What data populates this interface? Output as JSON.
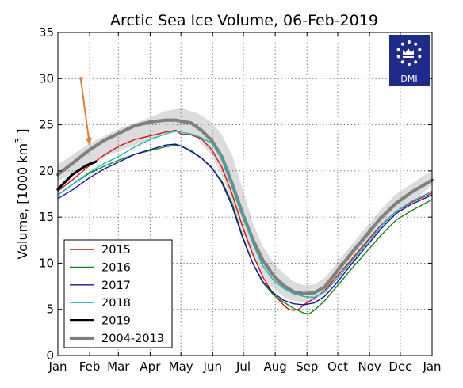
{
  "chart_data": {
    "type": "line",
    "title": "Arctic Sea Ice Volume, 06-Feb-2019",
    "ylabel_main": "Volume, [1000 km",
    "ylabel_sup": "3",
    "ylabel_end": " ]",
    "ylim": [
      0,
      35
    ],
    "yticks": [
      0,
      5,
      10,
      15,
      20,
      25,
      30,
      35
    ],
    "xlim": [
      0,
      365
    ],
    "xticks": [
      {
        "day": 0,
        "label": "Jan"
      },
      {
        "day": 31,
        "label": "Feb"
      },
      {
        "day": 59,
        "label": "Mar"
      },
      {
        "day": 90,
        "label": "Apr"
      },
      {
        "day": 120,
        "label": "May"
      },
      {
        "day": 151,
        "label": "Jun"
      },
      {
        "day": 181,
        "label": "Jul"
      },
      {
        "day": 212,
        "label": "Aug"
      },
      {
        "day": 243,
        "label": "Sep"
      },
      {
        "day": 273,
        "label": "Oct"
      },
      {
        "day": 304,
        "label": "Nov"
      },
      {
        "day": 334,
        "label": "Dec"
      },
      {
        "day": 365,
        "label": "Jan"
      }
    ],
    "grid": true,
    "legend_position": "lower-left",
    "band": {
      "x": [
        0,
        30,
        60,
        90,
        105,
        120,
        135,
        150,
        160,
        170,
        180,
        190,
        200,
        210,
        220,
        230,
        240,
        250,
        260,
        270,
        285,
        300,
        315,
        330,
        345,
        365
      ],
      "lower": [
        18.9,
        20.8,
        22.2,
        23.4,
        24.2,
        24.4,
        23.6,
        21.7,
        19.5,
        16.6,
        13.5,
        10.7,
        8.6,
        7.3,
        6.4,
        5.9,
        5.8,
        6.0,
        6.7,
        7.9,
        9.8,
        11.7,
        13.7,
        15.4,
        16.5,
        18.5
      ],
      "upper": [
        20.7,
        22.9,
        24.6,
        25.8,
        26.5,
        26.8,
        26.3,
        25.3,
        23.9,
        21.7,
        18.1,
        14.4,
        11.8,
        10.1,
        8.9,
        8.0,
        7.6,
        7.7,
        8.4,
        9.7,
        11.8,
        13.8,
        15.8,
        17.5,
        18.6,
        20.1
      ]
    },
    "series": [
      {
        "name": "2015",
        "color": "#dd1111",
        "width": 1.4,
        "x": [
          0,
          15,
          30,
          45,
          60,
          75,
          90,
          105,
          115,
          120,
          130,
          140,
          150,
          160,
          170,
          180,
          190,
          200,
          210,
          220,
          225,
          230,
          235,
          240,
          250,
          260,
          270,
          285,
          300,
          315,
          330,
          345,
          365
        ],
        "y": [
          17.8,
          19.1,
          20.5,
          21.7,
          22.7,
          23.4,
          23.8,
          24.2,
          24.4,
          24.0,
          23.9,
          23.5,
          22.3,
          20.4,
          17.5,
          14.0,
          11.0,
          8.5,
          6.7,
          5.5,
          5.0,
          4.9,
          5.0,
          5.5,
          6.2,
          7.0,
          8.3,
          10.2,
          12.2,
          14.1,
          15.6,
          16.6,
          17.6
        ]
      },
      {
        "name": "2016",
        "color": "#118811",
        "width": 1.4,
        "x": [
          0,
          15,
          30,
          45,
          60,
          75,
          90,
          105,
          115,
          120,
          130,
          140,
          150,
          160,
          170,
          180,
          190,
          200,
          210,
          220,
          230,
          240,
          245,
          250,
          260,
          270,
          285,
          300,
          315,
          330,
          345,
          365
        ],
        "y": [
          17.4,
          18.6,
          19.7,
          20.5,
          21.2,
          21.8,
          22.2,
          22.6,
          22.8,
          22.7,
          22.2,
          21.4,
          20.3,
          18.9,
          16.5,
          13.0,
          10.0,
          7.9,
          6.6,
          5.8,
          5.1,
          4.6,
          4.5,
          4.9,
          5.9,
          7.2,
          9.2,
          11.1,
          13.0,
          14.7,
          15.7,
          16.9
        ]
      },
      {
        "name": "2017",
        "color": "#1111aa",
        "width": 1.4,
        "x": [
          0,
          15,
          30,
          45,
          60,
          75,
          90,
          105,
          115,
          120,
          130,
          140,
          150,
          160,
          170,
          180,
          190,
          200,
          210,
          220,
          230,
          240,
          250,
          260,
          270,
          285,
          300,
          315,
          330,
          345,
          365
        ],
        "y": [
          17.0,
          18.0,
          19.2,
          20.2,
          21.0,
          21.8,
          22.3,
          22.8,
          22.9,
          22.7,
          22.1,
          21.4,
          20.4,
          18.7,
          16.2,
          12.8,
          10.0,
          8.0,
          6.8,
          6.0,
          5.6,
          5.5,
          5.7,
          6.4,
          7.6,
          9.7,
          11.7,
          13.7,
          15.4,
          16.4,
          17.4
        ]
      },
      {
        "name": "2018",
        "color": "#11bbbb",
        "width": 1.4,
        "x": [
          0,
          15,
          30,
          45,
          60,
          75,
          90,
          105,
          115,
          120,
          130,
          140,
          150,
          160,
          170,
          180,
          190,
          200,
          210,
          220,
          230,
          240,
          250,
          260,
          270,
          285,
          300,
          315,
          330,
          345,
          365
        ],
        "y": [
          17.4,
          18.6,
          19.8,
          20.8,
          21.6,
          22.6,
          23.4,
          24.0,
          24.3,
          24.2,
          24.0,
          23.6,
          23.0,
          21.5,
          18.5,
          15.5,
          12.2,
          9.7,
          8.2,
          7.3,
          6.7,
          6.4,
          6.3,
          6.9,
          8.0,
          10.0,
          12.0,
          14.0,
          15.6,
          16.7,
          17.8
        ]
      },
      {
        "name": "2019",
        "color": "#000000",
        "width": 3.2,
        "x": [
          0,
          7,
          14,
          21,
          28,
          37
        ],
        "y": [
          18.0,
          18.8,
          19.6,
          20.1,
          20.6,
          21.0
        ]
      },
      {
        "name": "2004-2013",
        "color": "#808080",
        "width": 4.2,
        "x": [
          0,
          15,
          30,
          45,
          60,
          75,
          90,
          105,
          115,
          120,
          130,
          140,
          150,
          160,
          170,
          180,
          190,
          200,
          210,
          220,
          230,
          240,
          250,
          260,
          270,
          285,
          300,
          315,
          330,
          345,
          365
        ],
        "y": [
          19.6,
          20.9,
          22.2,
          23.3,
          24.1,
          24.9,
          25.3,
          25.5,
          25.5,
          25.4,
          25.2,
          24.4,
          23.3,
          21.5,
          18.6,
          15.4,
          12.6,
          10.3,
          8.7,
          7.6,
          6.9,
          6.7,
          6.8,
          7.4,
          8.8,
          10.9,
          12.9,
          14.9,
          16.5,
          17.7,
          19.0
        ]
      }
    ],
    "annotation_arrow": {
      "color": "#e08030",
      "from": {
        "day": 22,
        "value": 30.2
      },
      "to": {
        "day": 31,
        "value": 22.8
      }
    }
  },
  "logo": {
    "text": "DMI",
    "bg": "#1f2b8a"
  }
}
